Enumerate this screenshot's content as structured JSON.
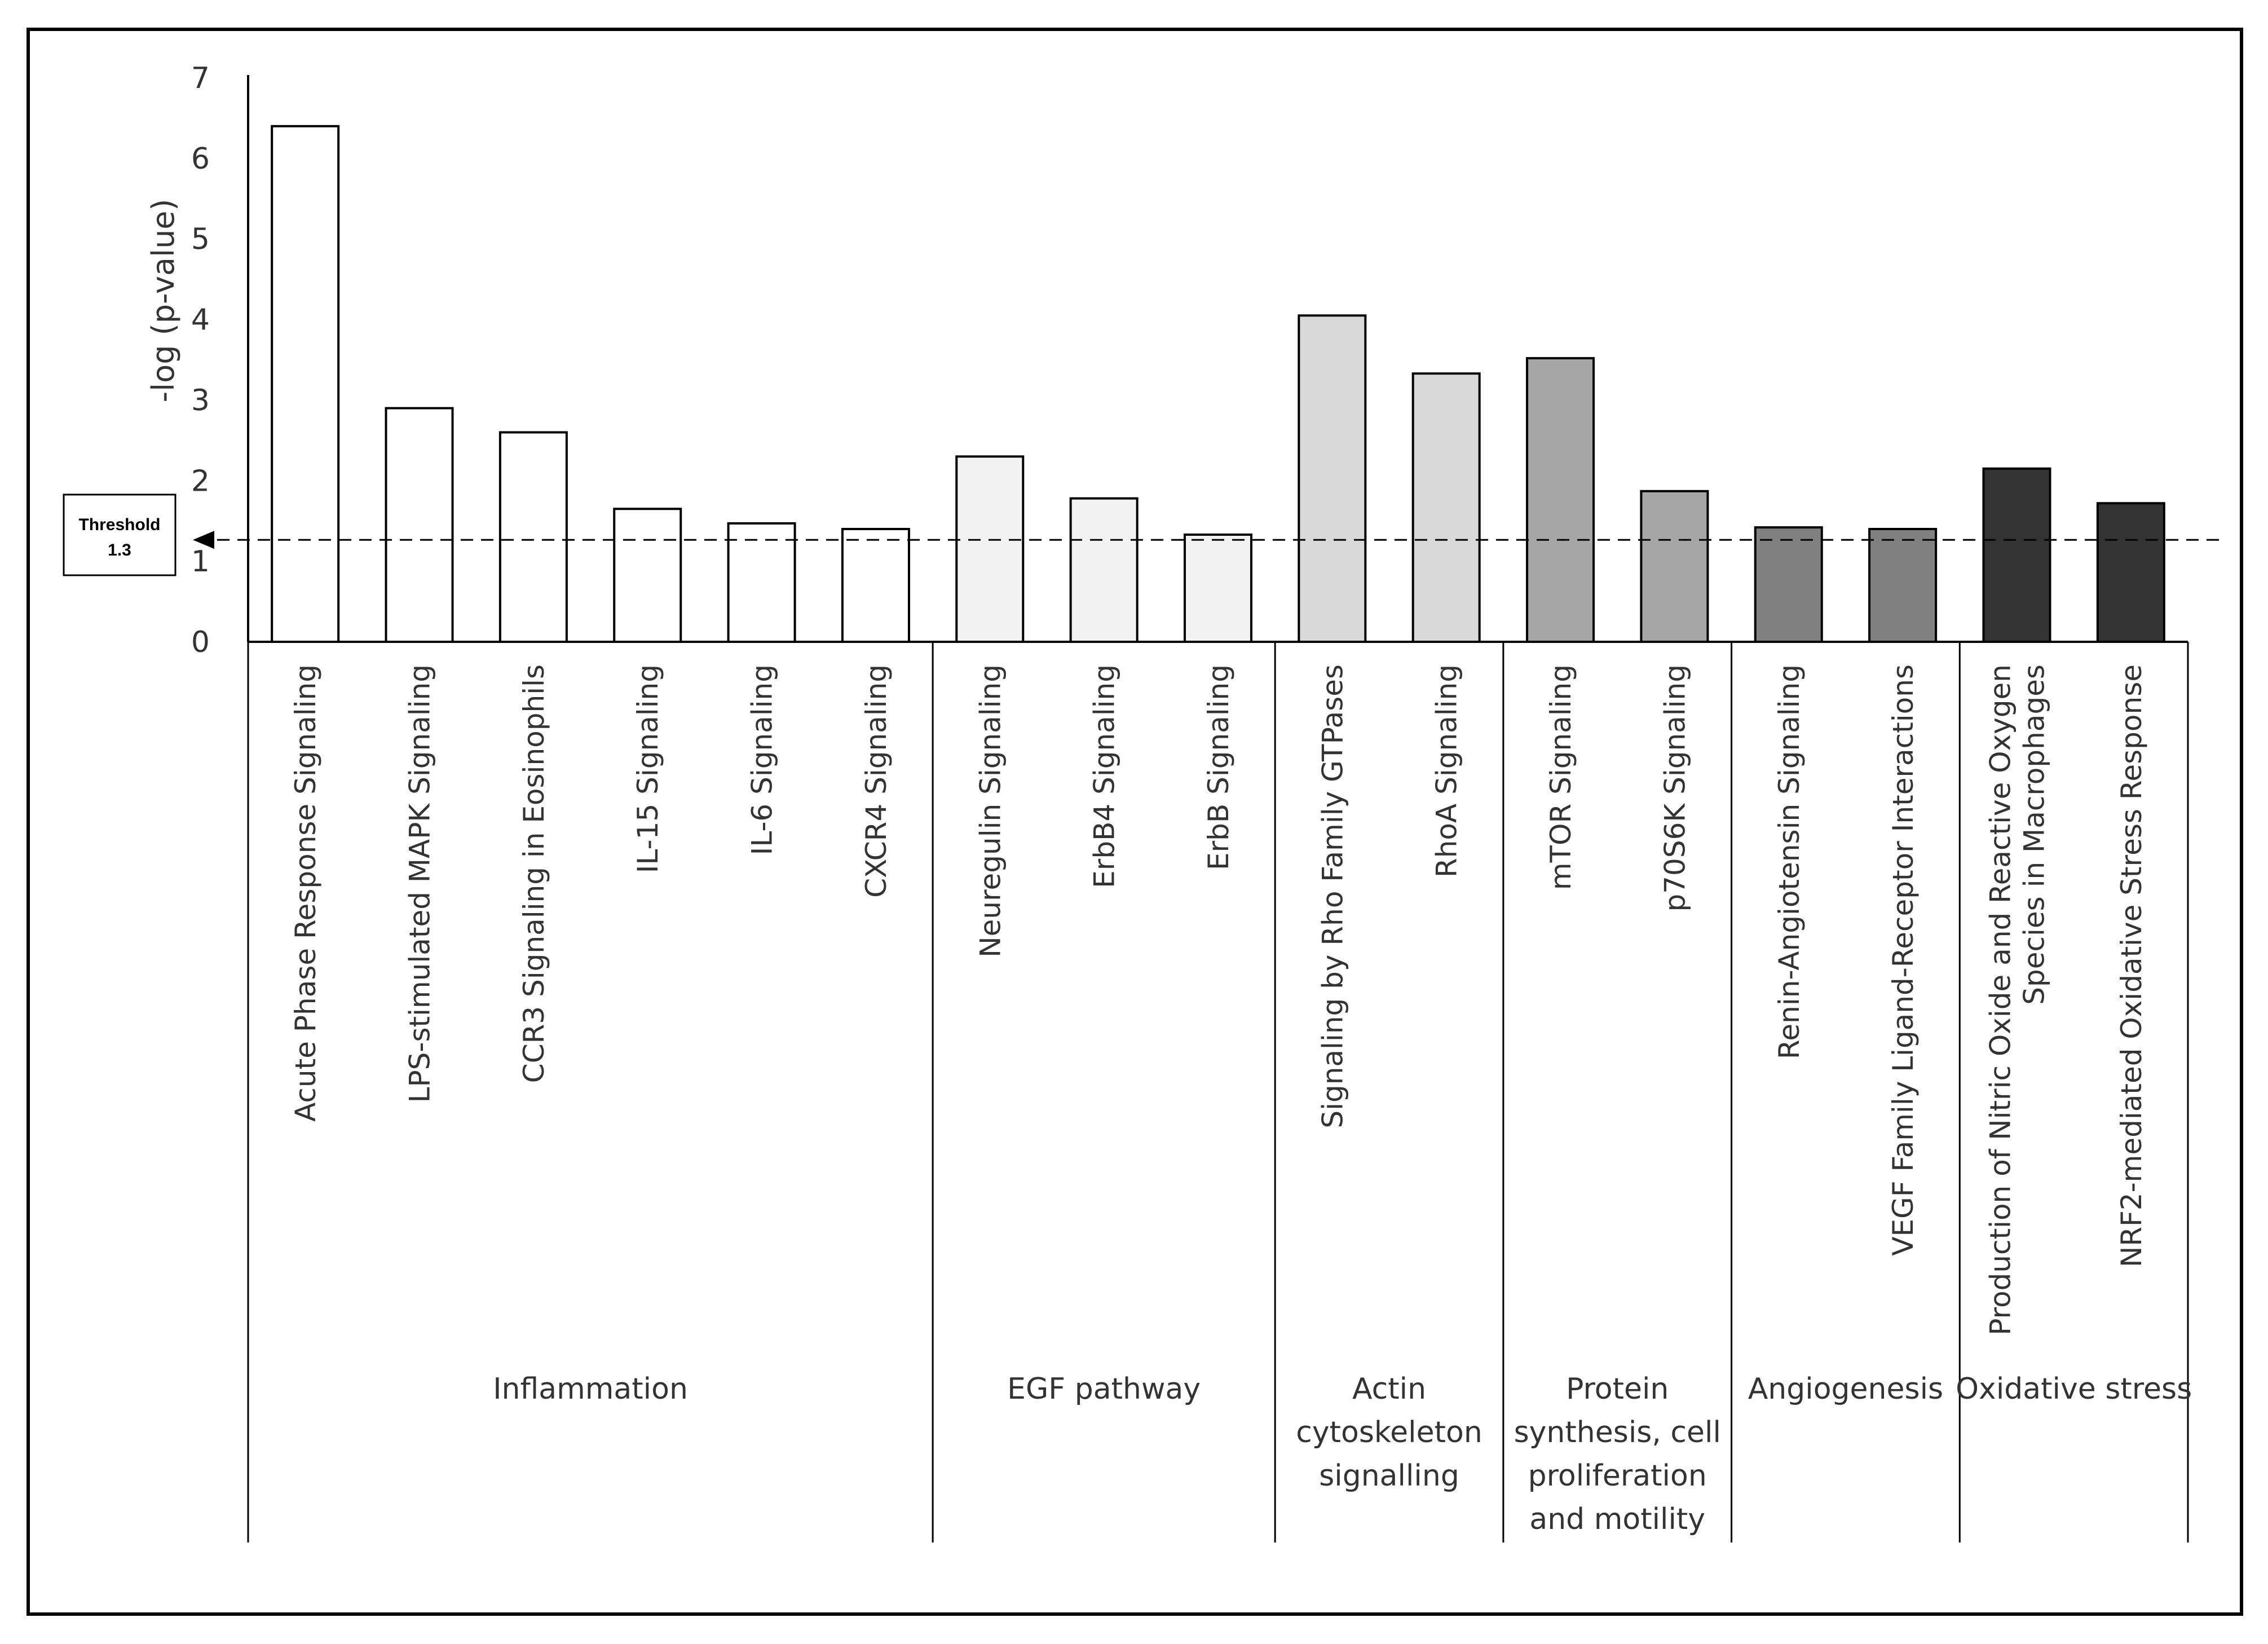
{
  "chart_data": {
    "type": "bar",
    "title": "",
    "xlabel": "",
    "ylabel": "-log (p-value)",
    "ylim": [
      0,
      7
    ],
    "yticks": [
      0,
      1,
      2,
      3,
      4,
      5,
      6,
      7
    ],
    "grid": false,
    "legend": "none",
    "categories": [
      [
        "Acute Phase Response Signaling"
      ],
      [
        "LPS-stimulated MAPK Signaling"
      ],
      [
        "CCR3 Signaling in Eosinophils"
      ],
      [
        "IL-15 Signaling"
      ],
      [
        "IL-6 Signaling"
      ],
      [
        "CXCR4 Signaling"
      ],
      [
        "Neuregulin Signaling"
      ],
      [
        "ErbB4 Signaling"
      ],
      [
        "ErbB Signaling"
      ],
      [
        "Signaling by Rho Family GTPases"
      ],
      [
        "RhoA Signaling"
      ],
      [
        "mTOR Signaling"
      ],
      [
        "p70S6K Signaling"
      ],
      [
        "Renin-Angiotensin Signaling"
      ],
      [
        "VEGF Family Ligand-Receptor Interactions"
      ],
      [
        "Production of Nitric Oxide and Reactive Oxygen",
        "Species in Macrophages"
      ],
      [
        "NRF2-mediated Oxidative Stress Response"
      ]
    ],
    "values": [
      6.4,
      2.9,
      2.6,
      1.65,
      1.47,
      1.4,
      2.3,
      1.78,
      1.33,
      4.05,
      3.33,
      3.52,
      1.87,
      1.42,
      1.4,
      2.15,
      1.72
    ],
    "groups": [
      {
        "lines": [
          "Inflammation"
        ],
        "start": 0,
        "end": 5,
        "color": "#ffffff"
      },
      {
        "lines": [
          "EGF pathway"
        ],
        "start": 6,
        "end": 8,
        "color": "#f2f2f2"
      },
      {
        "lines": [
          "Actin",
          "cytoskeleton",
          "signalling"
        ],
        "start": 9,
        "end": 10,
        "color": "#d9d9d9"
      },
      {
        "lines": [
          "Protein",
          "synthesis, cell",
          "proliferation",
          "and motility"
        ],
        "start": 11,
        "end": 12,
        "color": "#a6a6a6"
      },
      {
        "lines": [
          "Angiogenesis"
        ],
        "start": 13,
        "end": 14,
        "color": "#808080"
      },
      {
        "lines": [
          "Oxidative stress"
        ],
        "start": 15,
        "end": 16,
        "color": "#333333"
      }
    ],
    "threshold": {
      "value": 1.3,
      "label": "Threshold",
      "value_label": "1.3"
    }
  }
}
